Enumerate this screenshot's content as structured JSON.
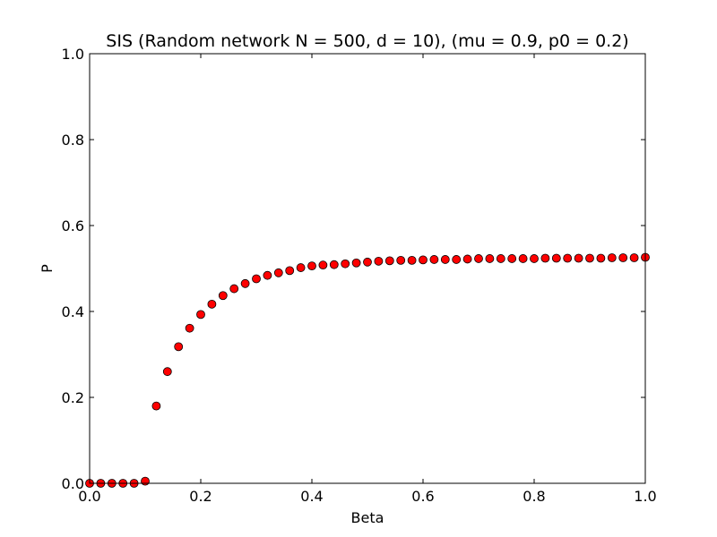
{
  "chart_data": {
    "type": "scatter",
    "title": "SIS (Random network N = 500, d = 10), (mu = 0.9, p0 = 0.2)",
    "xlabel": "Beta",
    "ylabel": "P",
    "xlim": [
      0.0,
      1.0
    ],
    "ylim": [
      0.0,
      1.0
    ],
    "xticks": [
      "0.0",
      "0.2",
      "0.4",
      "0.6",
      "0.8",
      "1.0"
    ],
    "yticks": [
      "0.0",
      "0.2",
      "0.4",
      "0.6",
      "0.8",
      "1.0"
    ],
    "grid": false,
    "marker_color": "#ff0000",
    "marker_edge_color": "#000000",
    "series": [
      {
        "name": "P",
        "x": [
          0.0,
          0.02,
          0.04,
          0.06,
          0.08,
          0.1,
          0.12,
          0.14,
          0.16,
          0.18,
          0.2,
          0.22,
          0.24,
          0.26,
          0.28,
          0.3,
          0.32,
          0.34,
          0.36,
          0.38,
          0.4,
          0.42,
          0.44,
          0.46,
          0.48,
          0.5,
          0.52,
          0.54,
          0.56,
          0.58,
          0.6,
          0.62,
          0.64,
          0.66,
          0.68,
          0.7,
          0.72,
          0.74,
          0.76,
          0.78,
          0.8,
          0.82,
          0.84,
          0.86,
          0.88,
          0.9,
          0.92,
          0.94,
          0.96,
          0.98,
          1.0
        ],
        "y": [
          0.0,
          0.0,
          0.0,
          0.0,
          0.0,
          0.005,
          0.18,
          0.26,
          0.318,
          0.361,
          0.393,
          0.417,
          0.437,
          0.453,
          0.465,
          0.476,
          0.484,
          0.49,
          0.495,
          0.502,
          0.506,
          0.508,
          0.509,
          0.511,
          0.513,
          0.515,
          0.517,
          0.518,
          0.519,
          0.519,
          0.52,
          0.521,
          0.521,
          0.521,
          0.522,
          0.523,
          0.523,
          0.523,
          0.523,
          0.523,
          0.523,
          0.524,
          0.524,
          0.524,
          0.524,
          0.524,
          0.524,
          0.525,
          0.525,
          0.525,
          0.526
        ]
      }
    ]
  }
}
